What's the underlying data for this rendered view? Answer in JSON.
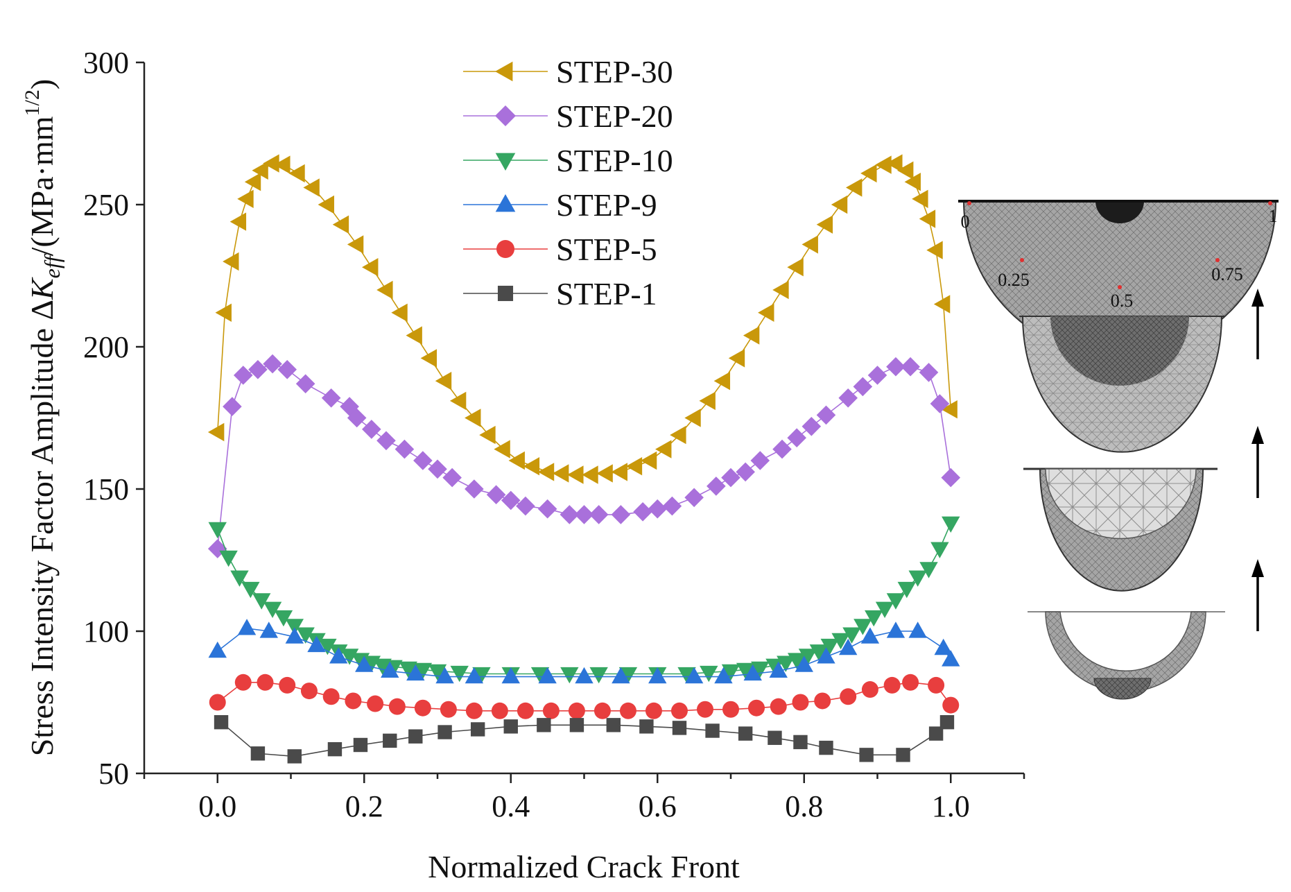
{
  "chart_data": {
    "type": "line",
    "xlabel": "Normalized Crack Front",
    "ylabel": {
      "prefix": "Stress Intensity Factor Amplitude ",
      "delta": "Δ",
      "symbol": "K",
      "subscript": "eff",
      "unit_open": "/(MPa·mm",
      "unit_exp": "1/2",
      "unit_close": ")"
    },
    "xlim": [
      -0.1,
      1.1
    ],
    "ylim": [
      50,
      300
    ],
    "xticks": [
      "0.0",
      "0.2",
      "0.4",
      "0.6",
      "0.8",
      "1.0"
    ],
    "yticks": [
      "50",
      "100",
      "150",
      "200",
      "250",
      "300"
    ],
    "legend_position": "top-center",
    "series": [
      {
        "name": "STEP-30",
        "color": "#c9980a",
        "marker": "triangle-left",
        "points": [
          [
            0,
            170
          ],
          [
            0.01,
            212
          ],
          [
            0.02,
            230
          ],
          [
            0.03,
            244
          ],
          [
            0.04,
            252
          ],
          [
            0.05,
            258
          ],
          [
            0.06,
            262
          ],
          [
            0.075,
            264.5
          ],
          [
            0.09,
            264
          ],
          [
            0.11,
            261
          ],
          [
            0.13,
            256
          ],
          [
            0.15,
            250
          ],
          [
            0.17,
            243
          ],
          [
            0.19,
            236
          ],
          [
            0.21,
            228
          ],
          [
            0.23,
            220
          ],
          [
            0.25,
            212
          ],
          [
            0.27,
            204
          ],
          [
            0.29,
            196
          ],
          [
            0.31,
            188
          ],
          [
            0.33,
            181
          ],
          [
            0.35,
            175
          ],
          [
            0.37,
            169
          ],
          [
            0.39,
            164
          ],
          [
            0.41,
            160
          ],
          [
            0.43,
            158
          ],
          [
            0.45,
            156
          ],
          [
            0.47,
            155.5
          ],
          [
            0.49,
            155
          ],
          [
            0.51,
            155
          ],
          [
            0.53,
            155.5
          ],
          [
            0.55,
            156
          ],
          [
            0.57,
            158
          ],
          [
            0.59,
            160
          ],
          [
            0.61,
            164
          ],
          [
            0.63,
            169
          ],
          [
            0.65,
            175
          ],
          [
            0.67,
            181
          ],
          [
            0.69,
            188
          ],
          [
            0.71,
            196
          ],
          [
            0.73,
            204
          ],
          [
            0.75,
            212
          ],
          [
            0.77,
            220
          ],
          [
            0.79,
            228
          ],
          [
            0.81,
            236
          ],
          [
            0.83,
            243
          ],
          [
            0.85,
            250
          ],
          [
            0.87,
            256
          ],
          [
            0.89,
            261
          ],
          [
            0.91,
            264
          ],
          [
            0.925,
            264.5
          ],
          [
            0.94,
            262
          ],
          [
            0.95,
            258
          ],
          [
            0.96,
            252
          ],
          [
            0.97,
            245
          ],
          [
            0.98,
            234
          ],
          [
            0.99,
            215
          ],
          [
            1.0,
            178
          ]
        ]
      },
      {
        "name": "STEP-20",
        "color": "#a970db",
        "marker": "diamond",
        "points": [
          [
            0,
            129
          ],
          [
            0.02,
            179
          ],
          [
            0.035,
            190
          ],
          [
            0.055,
            192
          ],
          [
            0.075,
            194
          ],
          [
            0.095,
            192
          ],
          [
            0.12,
            187
          ],
          [
            0.155,
            182
          ],
          [
            0.18,
            179
          ],
          [
            0.19,
            175
          ],
          [
            0.21,
            171
          ],
          [
            0.23,
            167
          ],
          [
            0.255,
            164
          ],
          [
            0.28,
            160
          ],
          [
            0.3,
            157
          ],
          [
            0.32,
            154
          ],
          [
            0.35,
            150
          ],
          [
            0.38,
            148
          ],
          [
            0.4,
            146
          ],
          [
            0.42,
            144
          ],
          [
            0.45,
            143
          ],
          [
            0.48,
            141
          ],
          [
            0.5,
            141
          ],
          [
            0.52,
            141
          ],
          [
            0.55,
            141
          ],
          [
            0.58,
            142
          ],
          [
            0.6,
            143
          ],
          [
            0.62,
            144
          ],
          [
            0.65,
            147
          ],
          [
            0.68,
            151
          ],
          [
            0.7,
            154
          ],
          [
            0.72,
            156
          ],
          [
            0.74,
            160
          ],
          [
            0.77,
            164
          ],
          [
            0.79,
            168
          ],
          [
            0.81,
            172
          ],
          [
            0.83,
            176
          ],
          [
            0.86,
            182
          ],
          [
            0.88,
            186
          ],
          [
            0.9,
            190
          ],
          [
            0.925,
            193
          ],
          [
            0.945,
            193
          ],
          [
            0.97,
            191
          ],
          [
            0.985,
            180
          ],
          [
            1.0,
            154
          ]
        ]
      },
      {
        "name": "STEP-10",
        "color": "#35a662",
        "marker": "triangle-down",
        "points": [
          [
            0,
            136
          ],
          [
            0.015,
            126
          ],
          [
            0.03,
            119
          ],
          [
            0.045,
            115
          ],
          [
            0.06,
            111
          ],
          [
            0.075,
            108
          ],
          [
            0.09,
            105
          ],
          [
            0.105,
            102
          ],
          [
            0.12,
            99
          ],
          [
            0.135,
            97
          ],
          [
            0.15,
            95
          ],
          [
            0.165,
            93
          ],
          [
            0.18,
            91.5
          ],
          [
            0.195,
            90
          ],
          [
            0.21,
            89
          ],
          [
            0.225,
            88
          ],
          [
            0.24,
            87.5
          ],
          [
            0.26,
            87
          ],
          [
            0.28,
            86.5
          ],
          [
            0.3,
            86
          ],
          [
            0.33,
            85.5
          ],
          [
            0.36,
            85
          ],
          [
            0.4,
            85
          ],
          [
            0.44,
            85
          ],
          [
            0.48,
            85
          ],
          [
            0.52,
            85
          ],
          [
            0.56,
            85
          ],
          [
            0.6,
            85
          ],
          [
            0.64,
            85
          ],
          [
            0.67,
            85.5
          ],
          [
            0.7,
            86
          ],
          [
            0.72,
            86.5
          ],
          [
            0.74,
            87
          ],
          [
            0.76,
            88
          ],
          [
            0.775,
            89
          ],
          [
            0.79,
            90
          ],
          [
            0.805,
            91.5
          ],
          [
            0.82,
            93
          ],
          [
            0.835,
            95
          ],
          [
            0.85,
            97
          ],
          [
            0.865,
            99
          ],
          [
            0.88,
            102
          ],
          [
            0.895,
            105
          ],
          [
            0.91,
            108
          ],
          [
            0.925,
            111
          ],
          [
            0.94,
            115
          ],
          [
            0.955,
            119
          ],
          [
            0.97,
            122
          ],
          [
            0.985,
            129
          ],
          [
            1.0,
            138
          ]
        ]
      },
      {
        "name": "STEP-9",
        "color": "#2b74d8",
        "marker": "triangle-up",
        "points": [
          [
            0,
            93
          ],
          [
            0.04,
            101
          ],
          [
            0.07,
            100
          ],
          [
            0.105,
            98
          ],
          [
            0.135,
            95
          ],
          [
            0.165,
            91
          ],
          [
            0.2,
            88
          ],
          [
            0.235,
            86
          ],
          [
            0.27,
            85
          ],
          [
            0.31,
            84
          ],
          [
            0.35,
            84
          ],
          [
            0.4,
            84
          ],
          [
            0.45,
            84
          ],
          [
            0.5,
            84
          ],
          [
            0.55,
            84
          ],
          [
            0.6,
            84
          ],
          [
            0.65,
            84
          ],
          [
            0.69,
            84
          ],
          [
            0.73,
            85
          ],
          [
            0.765,
            86
          ],
          [
            0.8,
            88
          ],
          [
            0.83,
            91
          ],
          [
            0.86,
            94
          ],
          [
            0.89,
            98
          ],
          [
            0.925,
            100
          ],
          [
            0.955,
            100
          ],
          [
            0.99,
            94
          ],
          [
            1.0,
            90
          ]
        ]
      },
      {
        "name": "STEP-5",
        "color": "#e83e3e",
        "marker": "circle",
        "points": [
          [
            0,
            75
          ],
          [
            0.035,
            82
          ],
          [
            0.065,
            82
          ],
          [
            0.095,
            81
          ],
          [
            0.125,
            79
          ],
          [
            0.155,
            77
          ],
          [
            0.185,
            75.5
          ],
          [
            0.215,
            74.5
          ],
          [
            0.245,
            73.5
          ],
          [
            0.28,
            73
          ],
          [
            0.315,
            72.5
          ],
          [
            0.35,
            72
          ],
          [
            0.385,
            72
          ],
          [
            0.42,
            72
          ],
          [
            0.455,
            72
          ],
          [
            0.49,
            72
          ],
          [
            0.525,
            72
          ],
          [
            0.56,
            72
          ],
          [
            0.595,
            72
          ],
          [
            0.63,
            72
          ],
          [
            0.665,
            72.5
          ],
          [
            0.7,
            72.5
          ],
          [
            0.735,
            73
          ],
          [
            0.765,
            73.5
          ],
          [
            0.795,
            75
          ],
          [
            0.825,
            75.5
          ],
          [
            0.86,
            77
          ],
          [
            0.89,
            79.5
          ],
          [
            0.92,
            81
          ],
          [
            0.945,
            82
          ],
          [
            0.98,
            81
          ],
          [
            1.0,
            74
          ]
        ]
      },
      {
        "name": "STEP-1",
        "color": "#4a4a4a",
        "marker": "square",
        "points": [
          [
            0.005,
            68
          ],
          [
            0.055,
            57
          ],
          [
            0.105,
            56
          ],
          [
            0.16,
            58.5
          ],
          [
            0.195,
            60
          ],
          [
            0.235,
            61.5
          ],
          [
            0.27,
            63
          ],
          [
            0.31,
            64.5
          ],
          [
            0.355,
            65.5
          ],
          [
            0.4,
            66.5
          ],
          [
            0.445,
            67
          ],
          [
            0.49,
            67
          ],
          [
            0.54,
            67
          ],
          [
            0.585,
            66.5
          ],
          [
            0.63,
            66
          ],
          [
            0.675,
            65
          ],
          [
            0.72,
            64
          ],
          [
            0.76,
            62.5
          ],
          [
            0.795,
            61
          ],
          [
            0.83,
            59
          ],
          [
            0.885,
            56.5
          ],
          [
            0.935,
            56.5
          ],
          [
            0.98,
            64
          ],
          [
            0.995,
            68
          ]
        ]
      }
    ]
  },
  "inset": {
    "labels": [
      "0",
      "0.25",
      "0.5",
      "0.75",
      "1"
    ]
  }
}
